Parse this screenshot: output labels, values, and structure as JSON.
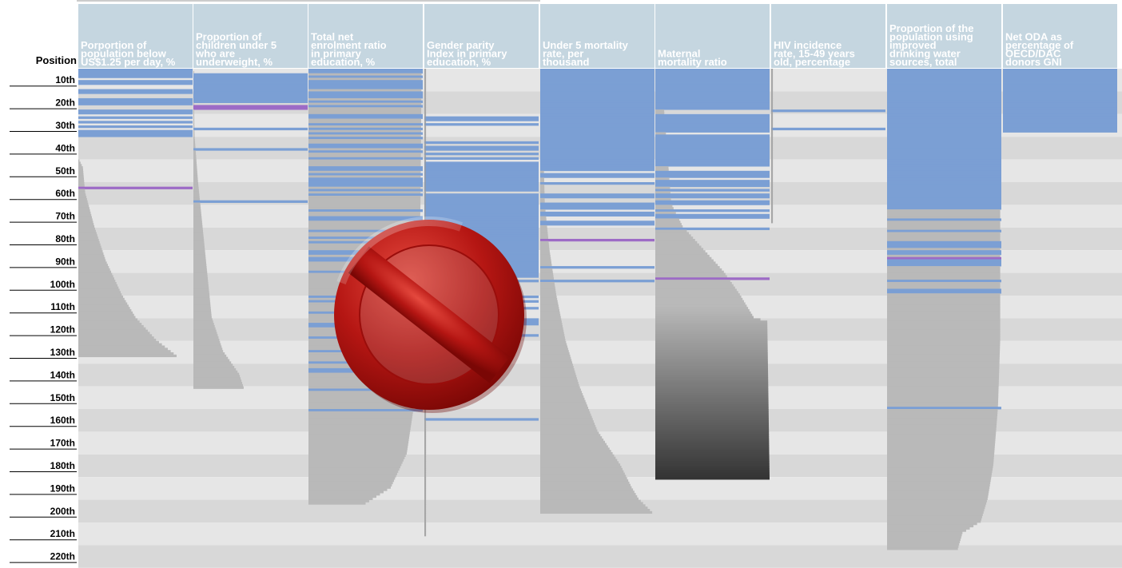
{
  "chart_data": {
    "type": "bar",
    "row_label": "Position",
    "y_ticks": [
      "10th",
      "20th",
      "30th",
      "40th",
      "50th",
      "60th",
      "70th",
      "80th",
      "90th",
      "100th",
      "110th",
      "120th",
      "130th",
      "140th",
      "150th",
      "160th",
      "170th",
      "180th",
      "190th",
      "200th",
      "210th",
      "220th"
    ],
    "series": [
      {
        "name": "Porportion of population below US$1.25 per day, %",
        "header_lines": [
          "Porportion of",
          "population below",
          "US$1.25 per day, %"
        ],
        "ranked_count": 127,
        "missing_positions": [
          1,
          2,
          3,
          4,
          6,
          7,
          10,
          11,
          14,
          15,
          16,
          19,
          20,
          22,
          24,
          26,
          28,
          29,
          30
        ],
        "highlight_positions": [
          53
        ],
        "profile": [
          [
            1,
            0
          ],
          [
            40,
            0
          ],
          [
            44,
            0.04
          ],
          [
            55,
            0.06
          ],
          [
            70,
            0.14
          ],
          [
            85,
            0.24
          ],
          [
            100,
            0.38
          ],
          [
            110,
            0.5
          ],
          [
            120,
            0.68
          ],
          [
            127,
            0.86
          ]
        ]
      },
      {
        "name": "Proportion of children under 5 who are underweight, %",
        "header_lines": [
          "Proportion of",
          "children under 5",
          "who are",
          "underweight, %"
        ],
        "ranked_count": 141,
        "missing_positions": [
          3,
          4,
          5,
          6,
          7,
          8,
          9,
          10,
          11,
          12,
          13,
          14,
          15,
          27,
          36,
          59
        ],
        "highlight_positions": [
          17,
          18
        ],
        "profile": [
          [
            1,
            0
          ],
          [
            30,
            0.01
          ],
          [
            50,
            0.04
          ],
          [
            70,
            0.08
          ],
          [
            90,
            0.12
          ],
          [
            110,
            0.16
          ],
          [
            125,
            0.26
          ],
          [
            135,
            0.4
          ],
          [
            141,
            0.44
          ]
        ]
      },
      {
        "name": "Total net enrolment ratio in primary education, %",
        "header_lines": [
          "Total net",
          "enrolment ratio",
          "in primary",
          "education, %"
        ],
        "ranked_count": 192,
        "missing_positions": [
          1,
          2,
          4,
          6,
          7,
          8,
          9,
          11,
          12,
          13,
          15,
          17,
          21,
          22,
          25,
          27,
          29,
          31,
          34,
          35,
          37,
          40,
          44,
          45,
          47,
          49,
          50,
          51,
          52,
          54,
          56,
          63,
          66,
          67,
          72,
          75,
          77,
          81,
          82,
          84,
          85,
          90,
          101,
          103,
          108,
          113,
          114,
          119,
          125,
          130,
          133,
          134,
          142,
          151
        ],
        "highlight_positions": [],
        "profile": [
          [
            1,
            0.99
          ],
          [
            60,
            0.98
          ],
          [
            110,
            0.96
          ],
          [
            150,
            0.92
          ],
          [
            170,
            0.86
          ],
          [
            185,
            0.72
          ],
          [
            192,
            0.5
          ]
        ]
      },
      {
        "name": "Gender parity Index in primary education, %",
        "header_lines": [
          "Gender parity",
          "Index in primary",
          "education, %"
        ],
        "ranked_count": 206,
        "missing_positions": [
          22,
          23,
          25,
          33,
          35,
          36,
          38,
          40,
          42,
          43,
          44,
          45,
          46,
          47,
          48,
          49,
          50,
          51,
          52,
          53,
          54,
          56,
          57,
          58,
          59,
          60,
          61,
          62,
          63,
          64,
          65,
          66,
          67,
          68,
          69,
          70,
          71,
          72,
          73,
          74,
          75,
          76,
          77,
          78,
          79,
          80,
          81,
          82,
          83,
          84,
          85,
          86,
          87,
          88,
          89,
          90,
          91,
          92,
          94,
          101,
          103,
          106,
          111,
          112,
          113,
          118,
          155
        ],
        "highlight_positions": [],
        "profile": [
          [
            1,
            0.015
          ],
          [
            206,
            0.015
          ]
        ]
      },
      {
        "name": "Under 5 mortality rate, per thousand",
        "header_lines": [
          "Under 5 mortality",
          "rate, per",
          "thousand"
        ],
        "ranked_count": 196,
        "missing_positions": [
          1,
          2,
          3,
          4,
          5,
          6,
          7,
          8,
          9,
          10,
          11,
          12,
          13,
          14,
          15,
          16,
          17,
          18,
          19,
          20,
          21,
          22,
          23,
          24,
          25,
          26,
          27,
          28,
          29,
          30,
          31,
          32,
          33,
          34,
          35,
          36,
          37,
          38,
          39,
          40,
          41,
          42,
          43,
          44,
          45,
          47,
          48,
          51,
          56,
          57,
          60,
          61,
          62,
          64,
          65,
          68,
          69,
          88,
          94
        ],
        "highlight_positions": [
          76
        ],
        "profile": [
          [
            1,
            0.01
          ],
          [
            60,
            0.04
          ],
          [
            80,
            0.08
          ],
          [
            100,
            0.14
          ],
          [
            120,
            0.22
          ],
          [
            140,
            0.34
          ],
          [
            160,
            0.5
          ],
          [
            175,
            0.7
          ],
          [
            185,
            0.8
          ],
          [
            190,
            0.86
          ],
          [
            196,
            0.98
          ]
        ]
      },
      {
        "name": "Maternal mortality ratio",
        "header_lines": [
          "Maternal",
          "mortality ratio"
        ],
        "ranked_count": 181,
        "missing_positions": [
          1,
          2,
          3,
          4,
          5,
          6,
          7,
          8,
          9,
          10,
          11,
          12,
          13,
          14,
          15,
          16,
          17,
          18,
          21,
          22,
          23,
          24,
          25,
          26,
          27,
          28,
          30,
          31,
          32,
          33,
          34,
          35,
          36,
          37,
          38,
          39,
          40,
          41,
          42,
          43,
          46,
          47,
          48,
          50,
          51,
          52,
          54,
          56,
          57,
          59,
          60,
          63,
          65,
          66,
          71
        ],
        "highlight_positions": [
          93
        ],
        "profile": [
          [
            1,
            0.05
          ],
          [
            60,
            0.14
          ],
          [
            70,
            0.24
          ],
          [
            80,
            0.42
          ],
          [
            90,
            0.6
          ],
          [
            100,
            0.74
          ],
          [
            105,
            0.8
          ],
          [
            110,
            0.86
          ],
          [
            112,
            0.98
          ],
          [
            181,
            1.0
          ]
        ]
      },
      {
        "name": "HIV incidence rate, 15-49 years old, percentage",
        "header_lines": [
          "HIV incidence",
          "rate, 15-49 years",
          "old, percentage"
        ],
        "ranked_count": 68,
        "missing_positions": [
          19,
          27
        ],
        "highlight_positions": [],
        "profile": [
          [
            1,
            0.015
          ],
          [
            68,
            0.015
          ]
        ]
      },
      {
        "name": "Proportion of the population using improved drinking water sources, total",
        "header_lines": [
          "Proportion of the",
          "population using",
          "improved",
          "drinking water",
          "sources, total"
        ],
        "ranked_count": 212,
        "missing_positions": [
          1,
          2,
          3,
          4,
          5,
          6,
          7,
          8,
          9,
          10,
          11,
          12,
          13,
          14,
          15,
          16,
          17,
          18,
          19,
          20,
          21,
          22,
          23,
          24,
          25,
          26,
          27,
          28,
          29,
          30,
          31,
          32,
          33,
          34,
          35,
          36,
          37,
          38,
          39,
          40,
          41,
          42,
          43,
          44,
          45,
          46,
          47,
          48,
          49,
          50,
          51,
          52,
          53,
          54,
          55,
          56,
          57,
          58,
          59,
          60,
          61,
          62,
          67,
          72,
          77,
          78,
          79,
          81,
          82,
          85,
          86,
          87,
          94,
          98,
          99,
          150
        ],
        "highlight_positions": [
          84
        ],
        "profile": [
          [
            1,
            0.99
          ],
          [
            120,
            0.99
          ],
          [
            150,
            0.97
          ],
          [
            175,
            0.93
          ],
          [
            190,
            0.88
          ],
          [
            200,
            0.82
          ],
          [
            205,
            0.66
          ],
          [
            212,
            0.62
          ]
        ]
      },
      {
        "name": "Net ODA as percentage of OECD/DAC donors GNI",
        "header_lines": [
          "Net ODA as",
          "percentage of",
          "OECD/DAC",
          "donors GNI"
        ],
        "ranked_count": 28,
        "missing_positions": [
          1,
          2,
          3,
          4,
          5,
          6,
          7,
          8,
          9,
          10,
          11,
          12,
          13,
          14,
          15,
          16,
          17,
          18,
          19,
          20,
          21,
          22,
          23,
          24,
          25,
          26,
          27,
          28
        ],
        "highlight_positions": [],
        "profile": [
          [
            1,
            0
          ],
          [
            28,
            0
          ]
        ]
      }
    ],
    "colors": {
      "missing": "#7b9fd4",
      "highlight": "#9d6bc6",
      "gray_light": "#b9b9b9",
      "gray_dark": "#2d2d2d",
      "header_bg": "#c5d6e0",
      "band_a": "#e6e6e6",
      "band_b": "#d8d8d8",
      "prohibit_red": "#b01414"
    },
    "overlay_icon": "prohibited-sign-icon"
  }
}
